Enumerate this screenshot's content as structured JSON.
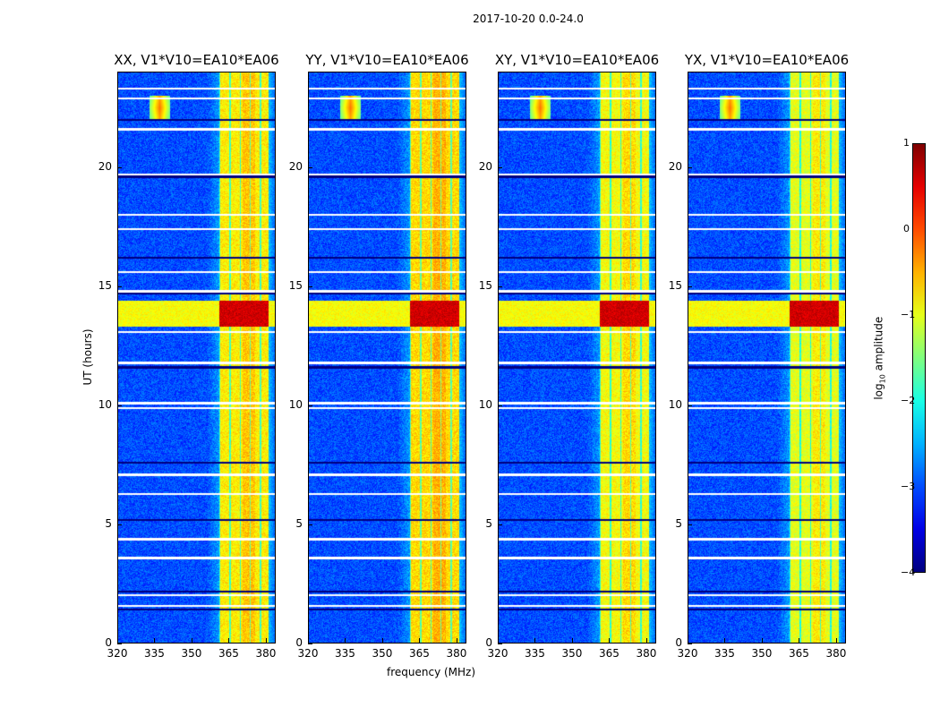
{
  "chart_data": {
    "type": "heatmap",
    "title": "2017-10-20 0.0-24.0",
    "xlabel": "frequency (MHz)",
    "ylabel": "UT (hours)",
    "xlim": [
      320,
      384
    ],
    "ylim": [
      0,
      24
    ],
    "xticks": [
      "320",
      "335",
      "350",
      "365",
      "380"
    ],
    "xtick_values": [
      320,
      335,
      350,
      365,
      380
    ],
    "yticks": [
      "0",
      "5",
      "10",
      "15",
      "20"
    ],
    "ytick_values": [
      0,
      5,
      10,
      15,
      20
    ],
    "panels": [
      {
        "title": "XX, V1*V10=EA10*EA06",
        "band_level": -0.8,
        "rfi": true
      },
      {
        "title": "YY, V1*V10=EA10*EA06",
        "band_level": -0.7,
        "rfi": true
      },
      {
        "title": "XY, V1*V10=EA10*EA06",
        "band_level": -0.9,
        "rfi": true
      },
      {
        "title": "YX, V1*V10=EA10*EA06",
        "band_level": -1.0,
        "rfi": true
      }
    ],
    "colorbar": {
      "label": "log10 amplitude",
      "label_main": "log",
      "label_sub": "10",
      "label_rest": " amplitude",
      "range": [
        -4,
        1
      ],
      "ticks": [
        "1",
        "0",
        "−1",
        "−2",
        "−3",
        "−4"
      ],
      "tick_values": [
        1,
        0,
        -1,
        -2,
        -3,
        -4
      ],
      "colormap": "jet"
    },
    "band_mhz": [
      361,
      381
    ],
    "bright_period_hours": [
      13.3,
      14.4
    ],
    "flagged_hours": [
      1.45,
      1.6,
      2.05,
      2.2,
      3.6,
      4.4,
      5.2,
      6.3,
      7.1,
      7.6,
      9.9,
      10.1,
      11.6,
      11.8,
      13.1,
      14.7,
      14.8,
      15.6,
      16.2,
      17.4,
      18.0,
      19.6,
      19.7,
      21.6,
      22.0,
      22.9,
      23.3
    ]
  }
}
